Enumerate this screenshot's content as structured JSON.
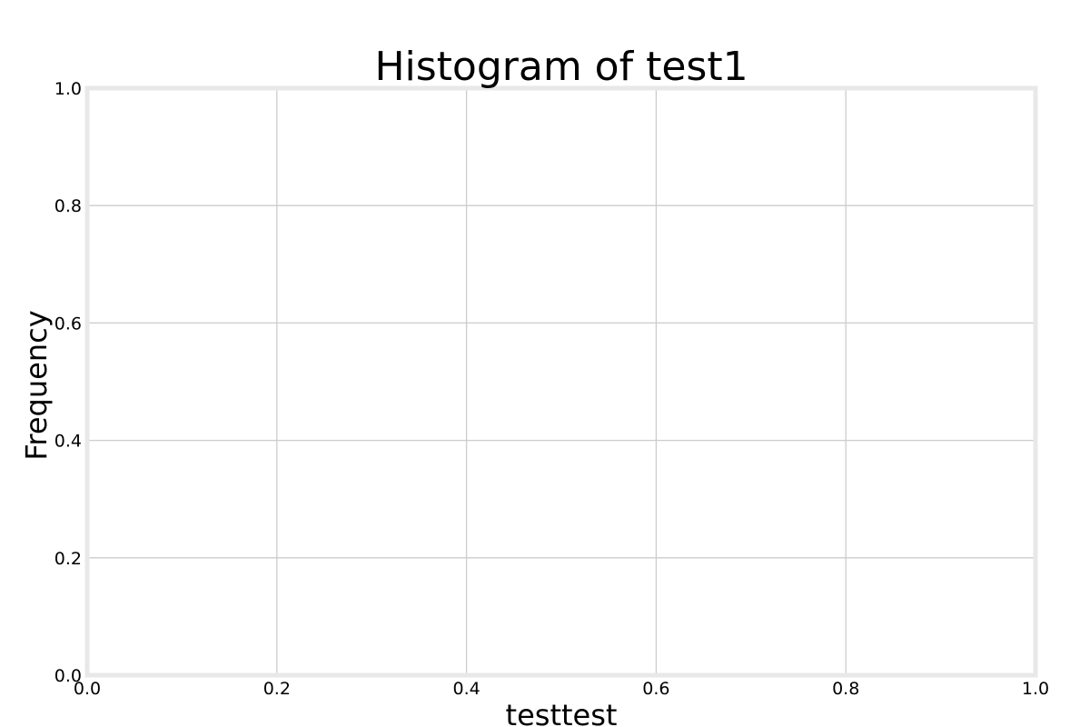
{
  "chart_data": {
    "type": "bar",
    "title": "Histogram of test1",
    "xlabel": "testtest",
    "ylabel": "Frequency",
    "xlim": [
      0.0,
      1.0
    ],
    "ylim": [
      0.0,
      1.0
    ],
    "x_ticks": [
      "0.0",
      "0.2",
      "0.4",
      "0.6",
      "0.8",
      "1.0"
    ],
    "y_ticks": [
      "0.0",
      "0.2",
      "0.4",
      "0.6",
      "0.8",
      "1.0"
    ],
    "grid": true,
    "bins": [],
    "values": []
  },
  "colors": {
    "background": "#ffffff",
    "frame": "#e8e8e8",
    "grid": "#cccccc",
    "text": "#000000"
  }
}
